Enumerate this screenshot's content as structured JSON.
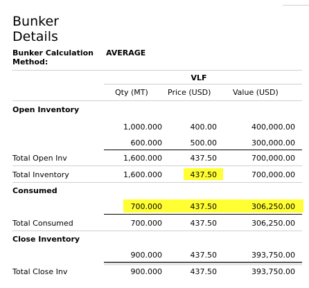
{
  "title_line1": "Bunker",
  "title_line2": "Details",
  "method_label_line1": "Bunker Calculation",
  "method_label_line2": "Method:",
  "method_value": "AVERAGE",
  "fuel": "VLF",
  "headers": {
    "qty": "Qty (MT)",
    "price": "Price (USD)",
    "value": "Value (USD)"
  },
  "sections": {
    "open_inventory": "Open Inventory",
    "consumed": "Consumed",
    "close_inventory": "Close Inventory"
  },
  "rows": {
    "open1": {
      "qty": "1,000.000",
      "price": "400.00",
      "value": "400,000.00"
    },
    "open2": {
      "qty": "600.000",
      "price": "500.00",
      "value": "300,000.00"
    },
    "total_open": {
      "label": "Total Open Inv",
      "qty": "1,600.000",
      "price": "437.50",
      "value": "700,000.00"
    },
    "total_inventory": {
      "label": "Total Inventory",
      "qty": "1,600.000",
      "price": "437.50",
      "value": "700,000.00"
    },
    "consumed1": {
      "qty": "700.000",
      "price": "437.50",
      "value": "306,250.00"
    },
    "total_consumed": {
      "label": "Total Consumed",
      "qty": "700.000",
      "price": "437.50",
      "value": "306,250.00"
    },
    "close1": {
      "qty": "900.000",
      "price": "437.50",
      "value": "393,750.00"
    },
    "total_close": {
      "label": "Total Close Inv",
      "qty": "900.000",
      "price": "437.50",
      "value": "393,750.00"
    }
  },
  "colors": {
    "highlight": "#ffff33"
  }
}
